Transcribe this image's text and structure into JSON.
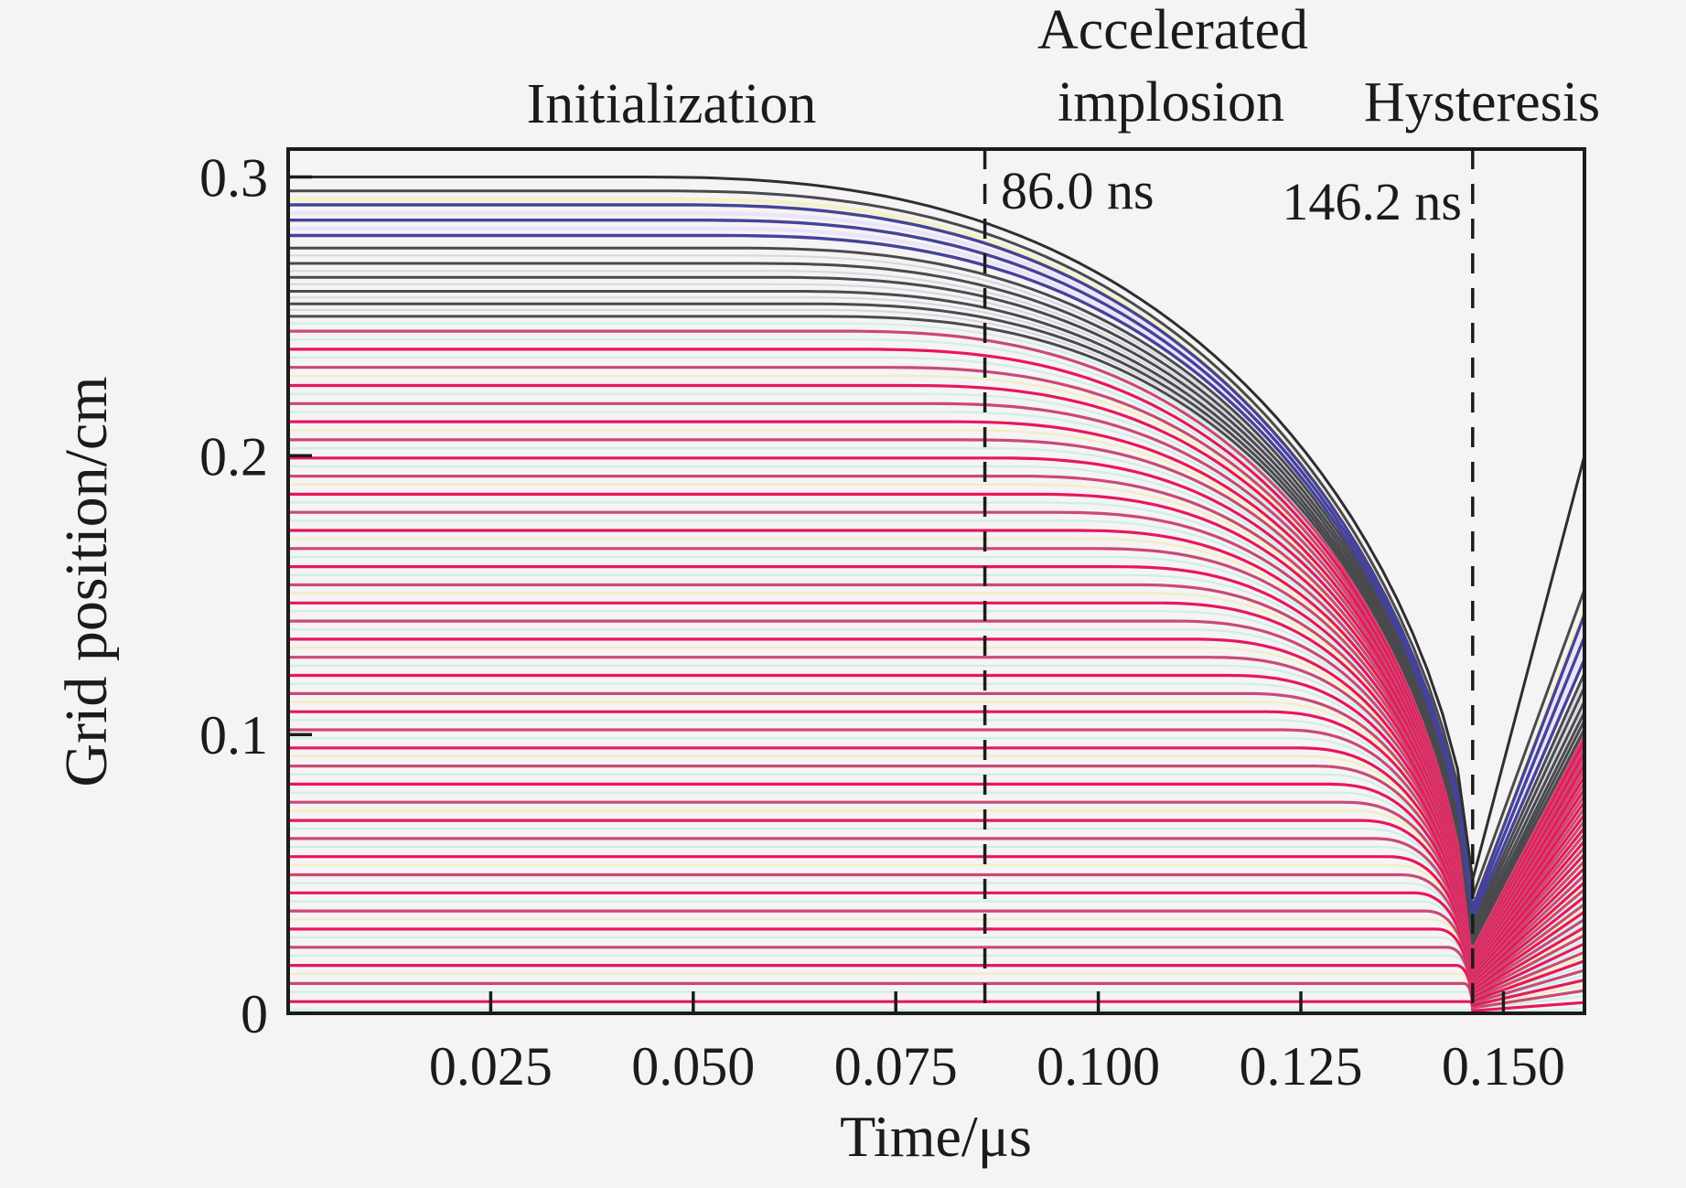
{
  "figure": {
    "background": "#f5f3f4",
    "ink": "#1b1b1b"
  },
  "chart_data": {
    "type": "line",
    "title": "",
    "xlabel": "Time/μs",
    "ylabel": "Grid position/cm",
    "xlim": [
      0,
      0.16
    ],
    "ylim": [
      0,
      0.31
    ],
    "grid": false,
    "legend": "none",
    "x_ticks": {
      "values": [
        0.025,
        0.05,
        0.075,
        0.1,
        0.125,
        0.15
      ],
      "labels": [
        "0.025",
        "0.050",
        "0.075",
        "0.100",
        "0.125",
        "0.150"
      ]
    },
    "y_ticks": {
      "values": [
        0,
        0.1,
        0.2,
        0.3
      ],
      "labels": [
        "0",
        "0.1",
        "0.2",
        "0.3"
      ]
    },
    "phase_labels": [
      {
        "text": "Initialization"
      },
      {
        "text": "Accelerated"
      },
      {
        "text": "implosion"
      },
      {
        "text": "Hysteresis"
      }
    ],
    "vlines": [
      {
        "t": 0.086,
        "label": "86.0 ns"
      },
      {
        "t": 0.1462,
        "label": "146.2 ns"
      }
    ],
    "model": {
      "t_bounce": 0.1462,
      "t_end": 0.16,
      "onset_t_outer": 0.042,
      "onset_exp": 1.35,
      "r_outer": 0.3,
      "fall_a": 2.6,
      "fall_b": 0.6,
      "samples": 56
    },
    "groups": [
      {
        "name": "interface-pale-lines",
        "kind": "range",
        "start": 0.0012,
        "step": 0.0065,
        "count": 38,
        "colors": [
          "#cdeeea",
          "#cdeeea",
          "#f1eebc"
        ],
        "width": 2.2,
        "min_coef": 0.0235,
        "end_coef": 0.098,
        "pack_exp": 0.8
      },
      {
        "name": "shell-faint-lines",
        "kind": "list",
        "color": "#d6d6de",
        "width": 2,
        "lines": [
          {
            "r0": 0.2475,
            "min": 0.0246,
            "end": 0.101,
            "color": "#cdeeea"
          },
          {
            "r0": 0.2523,
            "min": 0.0256,
            "end": 0.1035
          },
          {
            "r0": 0.2568,
            "min": 0.0268,
            "end": 0.1065
          },
          {
            "r0": 0.2615,
            "min": 0.0282,
            "end": 0.11
          },
          {
            "r0": 0.2663,
            "min": 0.0297,
            "end": 0.1145
          },
          {
            "r0": 0.2718,
            "min": 0.0312,
            "end": 0.1195
          }
        ]
      },
      {
        "name": "shell-lavender-lines",
        "kind": "list",
        "color": "#e9e4f9",
        "width": 4.2,
        "lines": [
          {
            "r0": 0.2815,
            "min": 0.035,
            "end": 0.131
          },
          {
            "r0": 0.287,
            "min": 0.037,
            "end": 0.139
          },
          {
            "r0": 0.292,
            "min": 0.039,
            "end": 0.145,
            "color": "#f4f1c6"
          }
        ]
      },
      {
        "name": "fuel-lines",
        "kind": "range",
        "start": 0.0042,
        "step": 0.0065,
        "count": 38,
        "colors": [
          "#e8175a",
          "#c94a72"
        ],
        "width": 3.2,
        "min_coef": 0.024,
        "end_coef": 0.1,
        "pack_exp": 0.8
      },
      {
        "name": "shell-gray-lines",
        "kind": "list",
        "color": "#4a4a4e",
        "width": 3,
        "lines": [
          {
            "r0": 0.25,
            "min": 0.025,
            "end": 0.102
          },
          {
            "r0": 0.2545,
            "min": 0.0262,
            "end": 0.105
          },
          {
            "r0": 0.259,
            "min": 0.0275,
            "end": 0.108
          },
          {
            "r0": 0.264,
            "min": 0.029,
            "end": 0.112
          },
          {
            "r0": 0.269,
            "min": 0.0305,
            "end": 0.117
          },
          {
            "r0": 0.2745,
            "min": 0.032,
            "end": 0.122
          },
          {
            "r0": 0.295,
            "min": 0.042,
            "end": 0.152
          }
        ]
      },
      {
        "name": "shell-blue-lines",
        "kind": "list",
        "color": "#454398",
        "width": 3.4,
        "lines": [
          {
            "r0": 0.279,
            "min": 0.034,
            "end": 0.127
          },
          {
            "r0": 0.2845,
            "min": 0.036,
            "end": 0.135
          },
          {
            "r0": 0.29,
            "min": 0.038,
            "end": 0.143
          }
        ]
      },
      {
        "name": "outer-interface-line",
        "kind": "list",
        "color": "#2e2e30",
        "width": 3,
        "lines": [
          {
            "r0": 0.3,
            "min": 0.048,
            "end": 0.2
          }
        ]
      }
    ]
  }
}
